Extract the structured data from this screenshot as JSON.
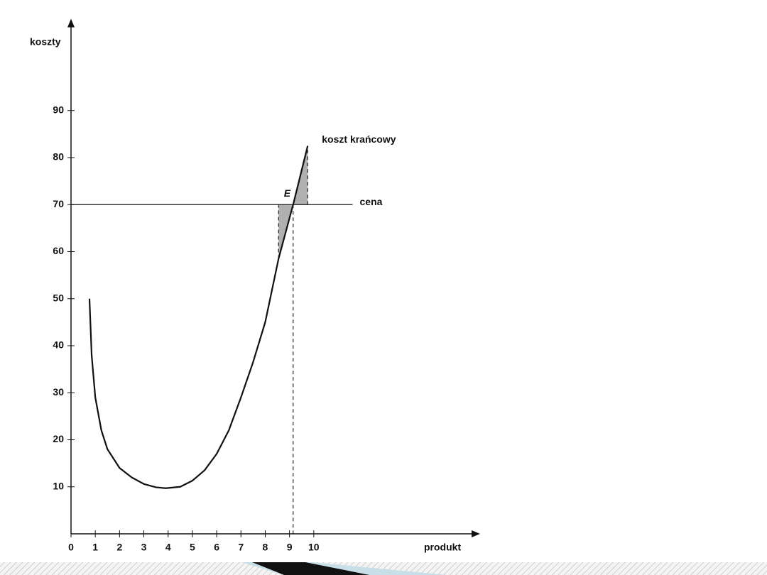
{
  "chart_data": {
    "type": "line",
    "x_label": "produkt",
    "y_label": "koszty",
    "x": [
      0.76,
      0.85,
      1,
      1.25,
      1.5,
      2,
      2.5,
      3,
      3.5,
      3.9,
      4.5,
      5,
      5.5,
      6,
      6.5,
      7,
      7.5,
      8,
      8.55,
      9.15,
      9.75
    ],
    "series": [
      {
        "name": "koszt krańcowy",
        "color": "#111111",
        "values": [
          50,
          38,
          29,
          22,
          18,
          14,
          12,
          10.6,
          9.9,
          9.7,
          10,
          11.3,
          13.5,
          17,
          22,
          29,
          36.5,
          45,
          58.5,
          70,
          82.5
        ]
      }
    ],
    "price_line": {
      "name": "cena",
      "value": 70,
      "x_end": 11.6
    },
    "point_label": {
      "text": "E",
      "x": 9.15,
      "y": 70
    },
    "dashed_lines": [
      {
        "x": [
          9.15,
          9.15
        ],
        "y": [
          70,
          0
        ]
      },
      {
        "x": [
          8.55,
          8.55
        ],
        "y": [
          58.5,
          70
        ]
      },
      {
        "x": [
          9.75,
          9.75
        ],
        "y": [
          70,
          82.5
        ]
      }
    ],
    "shaded": [
      {
        "x": [
          8.55,
          8.55,
          9.15
        ],
        "y": [
          58.5,
          70,
          70
        ]
      },
      {
        "x": [
          9.15,
          9.75,
          9.75
        ],
        "y": [
          70,
          70,
          82.5
        ]
      }
    ],
    "shade_color": "#b0b0b0",
    "xlim": [
      0,
      16.5
    ],
    "ylim": [
      0,
      108
    ],
    "xticks": [
      0,
      1,
      2,
      3,
      4,
      5,
      6,
      7,
      8,
      9,
      10
    ],
    "yticks": [
      10,
      20,
      30,
      40,
      50,
      60,
      70,
      80,
      90
    ]
  }
}
